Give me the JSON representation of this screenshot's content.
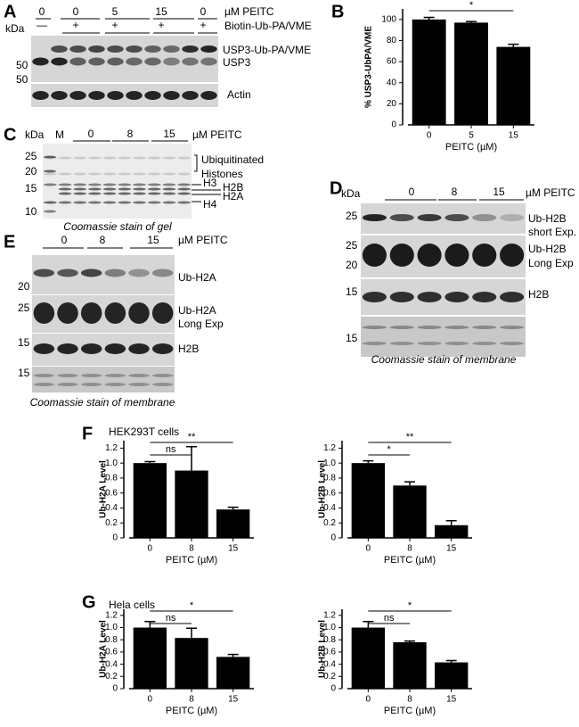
{
  "panel_a": {
    "label": "A",
    "kda": "kDa",
    "lanes": [
      "0",
      "0",
      "5",
      "15",
      "0"
    ],
    "unit": "µM PEITC",
    "probe_marks": [
      "—",
      "+",
      "+",
      "+",
      "+"
    ],
    "probe": "Biotin-Ub-PA/VME",
    "markers": [
      "50",
      "50"
    ],
    "bands": [
      "USP3-Ub-PA/VME",
      "USP3",
      "Actin"
    ]
  },
  "panel_b": {
    "label": "B"
  },
  "panel_c": {
    "label": "C",
    "kda": "kDa",
    "marker_lane": "M",
    "lanes": [
      "0",
      "8",
      "15"
    ],
    "unit": "µM PEITC",
    "markers": [
      "25",
      "20",
      "15",
      "10"
    ],
    "bands": [
      "Ubiquitinated",
      "Histones",
      "H3",
      "H2B",
      "H2A",
      "H4"
    ],
    "caption": "Coomassie stain of gel"
  },
  "panel_d": {
    "label": "D",
    "kda": "kDa",
    "lanes": [
      "0",
      "8",
      "15"
    ],
    "unit": "µM PEITC",
    "markers": [
      "25",
      "25",
      "20",
      "15",
      "15"
    ],
    "bands": [
      "Ub-H2B",
      "short Exp.",
      "Ub-H2B",
      "Long Exp",
      "H2B"
    ],
    "caption": "Coomassie stain of membrane"
  },
  "panel_e": {
    "label": "E",
    "lanes": [
      "0",
      "8",
      "15"
    ],
    "unit": "µM PEITC",
    "markers": [
      "20",
      "25",
      "15",
      "15"
    ],
    "bands": [
      "Ub-H2A",
      "Ub-H2A",
      "Long Exp",
      "H2B"
    ],
    "caption": "Coomassie stain of membrane"
  },
  "panel_f": {
    "label": "F",
    "cells": "HEK293T cells"
  },
  "panel_g": {
    "label": "G",
    "cells": "Hela cells"
  },
  "chart_data": [
    {
      "type": "bar",
      "ylabel": "% USP3-UbPA/VME",
      "xlabel": "PEITC (µM)",
      "categories": [
        "0",
        "5",
        "15"
      ],
      "values": [
        100,
        97,
        74
      ],
      "errors": [
        2,
        1,
        2.5
      ],
      "color": "#000000",
      "ylim": [
        0,
        110
      ],
      "yticks": [
        0,
        20,
        40,
        60,
        80,
        100
      ],
      "annotations": [
        {
          "text": "*",
          "between": [
            0,
            2
          ]
        }
      ]
    },
    {
      "type": "bar",
      "ylabel": "Ub-H2A Level",
      "xlabel": "PEITC (µM)",
      "categories": [
        "0",
        "8",
        "15"
      ],
      "values": [
        1.0,
        0.9,
        0.38
      ],
      "errors": [
        0.02,
        0.32,
        0.03
      ],
      "color": "#000000",
      "ylim": [
        0,
        1.3
      ],
      "yticks": [
        0,
        0.2,
        0.4,
        0.6,
        0.8,
        {
          "value": 1,
          "label": "1.0"
        },
        1.2
      ],
      "annotations": [
        {
          "text": "ns",
          "between": [
            0,
            1
          ]
        },
        {
          "text": "**",
          "between": [
            0,
            2
          ]
        }
      ]
    },
    {
      "type": "bar",
      "ylabel": "Ub-H2B Level",
      "xlabel": "PEITC (µM)",
      "categories": [
        "0",
        "8",
        "15"
      ],
      "values": [
        1.0,
        0.7,
        0.17
      ],
      "errors": [
        0.03,
        0.05,
        0.06
      ],
      "color": "#000000",
      "ylim": [
        0,
        1.3
      ],
      "yticks": [
        0,
        0.2,
        0.4,
        0.6,
        0.8,
        {
          "value": 1,
          "label": "1.0"
        },
        1.2
      ],
      "annotations": [
        {
          "text": "*",
          "between": [
            0,
            1
          ]
        },
        {
          "text": "**",
          "between": [
            0,
            2
          ]
        }
      ]
    },
    {
      "type": "bar",
      "ylabel": "Ub-H2A Level",
      "xlabel": "PEITC (µM)",
      "categories": [
        "0",
        "8",
        "15"
      ],
      "values": [
        1.0,
        0.83,
        0.52
      ],
      "errors": [
        0.1,
        0.16,
        0.04
      ],
      "color": "#000000",
      "ylim": [
        0,
        1.3
      ],
      "yticks": [
        0,
        0.2,
        0.4,
        0.6,
        0.8,
        {
          "value": 1,
          "label": "1.0"
        },
        1.2
      ],
      "annotations": [
        {
          "text": "ns",
          "between": [
            0,
            1
          ]
        },
        {
          "text": "*",
          "between": [
            0,
            2
          ]
        }
      ]
    },
    {
      "type": "bar",
      "ylabel": "Ub-H2B Level",
      "xlabel": "PEITC (µM)",
      "categories": [
        "0",
        "8",
        "15"
      ],
      "values": [
        1.0,
        0.76,
        0.43
      ],
      "errors": [
        0.1,
        0.02,
        0.03
      ],
      "color": "#000000",
      "ylim": [
        0,
        1.3
      ],
      "yticks": [
        0,
        0.2,
        0.4,
        0.6,
        0.8,
        {
          "value": 1,
          "label": "1.0"
        },
        1.2
      ],
      "annotations": [
        {
          "text": "ns",
          "between": [
            0,
            1
          ]
        },
        {
          "text": "*",
          "between": [
            0,
            2
          ]
        }
      ]
    }
  ]
}
